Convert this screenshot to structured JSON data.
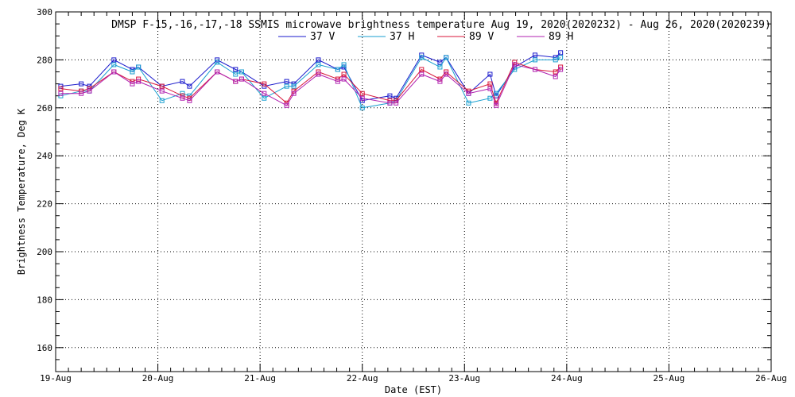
{
  "chart_data": {
    "type": "line",
    "title": "DMSP F-15,-16,-17,-18 SSMIS microwave brightness temperature Aug 19, 2020(2020232) - Aug 26, 2020(2020239)",
    "xlabel": "Date (EST)",
    "ylabel": "Brightness Temperature, Deg K",
    "xlim": [
      0,
      7
    ],
    "ylim": [
      150,
      300
    ],
    "y_ticks": [
      160,
      180,
      200,
      220,
      240,
      260,
      280,
      300
    ],
    "x_ticks": [
      {
        "value": 0,
        "label": "19-Aug"
      },
      {
        "value": 1,
        "label": "20-Aug"
      },
      {
        "value": 2,
        "label": "21-Aug"
      },
      {
        "value": 3,
        "label": "22-Aug"
      },
      {
        "value": 4,
        "label": "23-Aug"
      },
      {
        "value": 5,
        "label": "24-Aug"
      },
      {
        "value": 6,
        "label": "25-Aug"
      },
      {
        "value": 7,
        "label": "26-Aug"
      }
    ],
    "grid": true,
    "legend_position": "top",
    "x_units": "days since 19-Aug 00:00 EST",
    "x": [
      0.05,
      0.25,
      0.33,
      0.57,
      0.75,
      0.81,
      1.04,
      1.24,
      1.31,
      1.58,
      1.76,
      1.82,
      2.04,
      2.26,
      2.33,
      2.57,
      2.76,
      2.82,
      3.0,
      3.27,
      3.33,
      3.58,
      3.76,
      3.82,
      4.04,
      4.25,
      4.31,
      4.49,
      4.69,
      4.89,
      4.94
    ],
    "series": [
      {
        "name": "37 V",
        "color": "#1a1acc",
        "values": [
          269,
          270,
          269,
          280,
          276,
          277,
          269,
          271,
          269,
          280,
          276,
          275,
          269,
          271,
          270,
          280,
          276,
          277,
          263,
          265,
          264,
          282,
          279,
          281,
          266,
          274,
          265,
          277,
          282,
          281,
          283
        ]
      },
      {
        "name": "37 H",
        "color": "#1a9fd0",
        "values": [
          265,
          267,
          267,
          278,
          275,
          277,
          263,
          266,
          265,
          279,
          274,
          275,
          264,
          269,
          269,
          278,
          276,
          278,
          260,
          262,
          263,
          281,
          277,
          281,
          262,
          264,
          266,
          276,
          280,
          280,
          281
        ]
      },
      {
        "name": "89 V",
        "color": "#d8163a",
        "values": [
          268,
          267,
          268,
          275,
          271,
          272,
          269,
          265,
          264,
          275,
          271,
          272,
          270,
          262,
          267,
          275,
          272,
          274,
          266,
          263,
          263,
          276,
          272,
          275,
          267,
          270,
          262,
          279,
          276,
          275,
          277
        ]
      },
      {
        "name": "89 H",
        "color": "#b020b0",
        "values": [
          266,
          266,
          267,
          275,
          270,
          271,
          267,
          264,
          263,
          275,
          271,
          272,
          266,
          261,
          266,
          274,
          271,
          272,
          264,
          262,
          262,
          274,
          271,
          274,
          266,
          268,
          261,
          278,
          276,
          273,
          276
        ]
      }
    ]
  }
}
